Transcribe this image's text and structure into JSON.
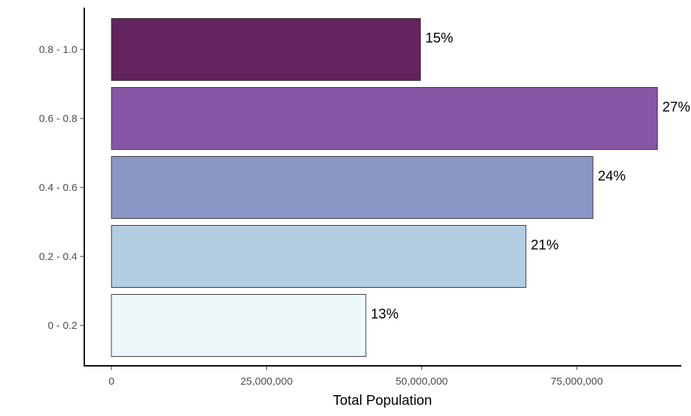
{
  "chart_data": {
    "type": "bar",
    "orientation": "horizontal",
    "categories": [
      "0 - 0.2",
      "0.2 - 0.4",
      "0.4 - 0.6",
      "0.6 - 0.8",
      "0.8 - 1.0"
    ],
    "values": [
      41000000,
      66800000,
      77600000,
      88000000,
      49800000
    ],
    "data_labels": [
      "13%",
      "21%",
      "24%",
      "27%",
      "15%"
    ],
    "colors": [
      "#edf8fb",
      "#b3cde3",
      "#8c96c6",
      "#8856a7",
      "#63235f"
    ],
    "title": "",
    "xlabel": "Total Population",
    "ylabel": "",
    "xlim": [
      0,
      92000000
    ],
    "x_ticks": [
      0,
      25000000,
      50000000,
      75000000
    ],
    "x_tick_labels": [
      "0",
      "25,000,000",
      "50,000,000",
      "75,000,000"
    ],
    "grid": false,
    "legend": "none"
  }
}
